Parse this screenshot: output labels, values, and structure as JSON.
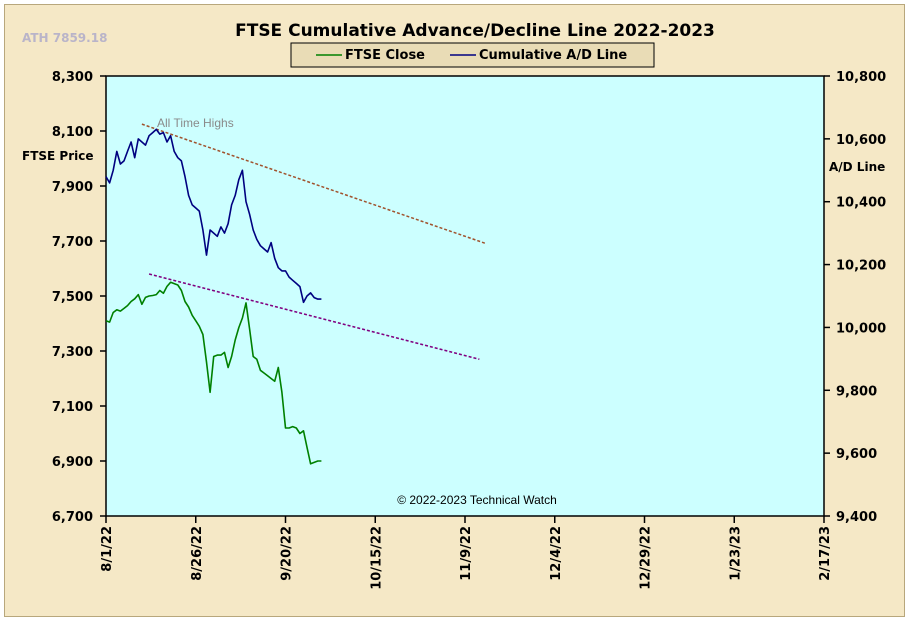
{
  "chart_data": {
    "type": "line",
    "title": "FTSE Cumulative  Advance/Decline  Line 2022-2023",
    "ath_label": "ATH 7859.18",
    "ylabel_left": "FTSE Price",
    "ylabel_right": "A/D Line",
    "copyright": "© 2022-2023  Technical Watch",
    "annotation": "All Time Highs",
    "x_tick_labels": [
      "8/1/22",
      "8/26/22",
      "9/20/22",
      "10/15/22",
      "11/9/22",
      "12/4/22",
      "12/29/22",
      "1/23/23",
      "2/17/23"
    ],
    "x_range_days": [
      0,
      200
    ],
    "y_left": {
      "min": 6700,
      "max": 8300,
      "ticks": [
        "6,700",
        "6,900",
        "7,100",
        "7,300",
        "7,500",
        "7,700",
        "7,900",
        "8,100",
        "8,300"
      ]
    },
    "y_right": {
      "min": 9400,
      "max": 10800,
      "ticks": [
        "9,400",
        "9,600",
        "9,800",
        "10,000",
        "10,200",
        "10,400",
        "10,600",
        "10,800"
      ]
    },
    "legend": {
      "placement": "top-center",
      "entries": [
        "FTSE Close",
        "Cumulative A/D Line"
      ]
    },
    "grid": false,
    "colors": {
      "ftse": "#008000",
      "ad": "#000080",
      "plot_bg": "#ccffff",
      "frame_bg": "#f5e8c6",
      "trend_upper": "#a0522d",
      "trend_lower": "#800080"
    },
    "series": [
      {
        "name": "FTSE Close",
        "axis": "left",
        "x_days": [
          0,
          1,
          2,
          3,
          4,
          5,
          6,
          7,
          8,
          9,
          10,
          11,
          12,
          13,
          14,
          15,
          16,
          17,
          18,
          19,
          20,
          21,
          22,
          23,
          24,
          25,
          26,
          27,
          28,
          29,
          30,
          31,
          32,
          33,
          34,
          35,
          36,
          37,
          38,
          39,
          40,
          41,
          42,
          43,
          44,
          45,
          46,
          47,
          48,
          49,
          50,
          51,
          52,
          53,
          54,
          55,
          56,
          57,
          58,
          59,
          60
        ],
        "values": [
          7410,
          7405,
          7440,
          7450,
          7445,
          7455,
          7465,
          7480,
          7490,
          7505,
          7470,
          7495,
          7500,
          7502,
          7505,
          7520,
          7510,
          7535,
          7550,
          7545,
          7540,
          7520,
          7480,
          7460,
          7430,
          7410,
          7390,
          7360,
          7260,
          7150,
          7280,
          7285,
          7285,
          7295,
          7240,
          7280,
          7340,
          7385,
          7420,
          7475,
          7380,
          7280,
          7270,
          7230,
          7220,
          7210,
          7200,
          7190,
          7240,
          7150,
          7020,
          7020,
          7025,
          7020,
          7000,
          7010,
          6950,
          6890,
          6895,
          6900,
          6900
        ]
      },
      {
        "name": "Cumulative A/D Line",
        "axis": "right",
        "x_days": [
          0,
          1,
          2,
          3,
          4,
          5,
          6,
          7,
          8,
          9,
          10,
          11,
          12,
          13,
          14,
          15,
          16,
          17,
          18,
          19,
          20,
          21,
          22,
          23,
          24,
          25,
          26,
          27,
          28,
          29,
          30,
          31,
          32,
          33,
          34,
          35,
          36,
          37,
          38,
          39,
          40,
          41,
          42,
          43,
          44,
          45,
          46,
          47,
          48,
          49,
          50,
          51,
          52,
          53,
          54,
          55,
          56,
          57,
          58,
          59,
          60
        ],
        "values": [
          10480,
          10460,
          10500,
          10560,
          10520,
          10530,
          10560,
          10590,
          10540,
          10600,
          10590,
          10580,
          10610,
          10620,
          10630,
          10615,
          10620,
          10590,
          10610,
          10560,
          10540,
          10530,
          10480,
          10420,
          10390,
          10380,
          10370,
          10310,
          10230,
          10310,
          10300,
          10290,
          10320,
          10300,
          10330,
          10390,
          10420,
          10470,
          10500,
          10400,
          10360,
          10310,
          10280,
          10260,
          10250,
          10240,
          10270,
          10220,
          10190,
          10180,
          10180,
          10160,
          10150,
          10140,
          10130,
          10080,
          10100,
          10110,
          10095,
          10090,
          10090
        ]
      }
    ],
    "trendlines": [
      {
        "name": "upper",
        "axis": "left",
        "from": [
          10,
          8125
        ],
        "to": [
          106,
          7690
        ]
      },
      {
        "name": "lower",
        "axis": "left",
        "from": [
          12,
          7580
        ],
        "to": [
          104,
          7270
        ]
      }
    ]
  }
}
